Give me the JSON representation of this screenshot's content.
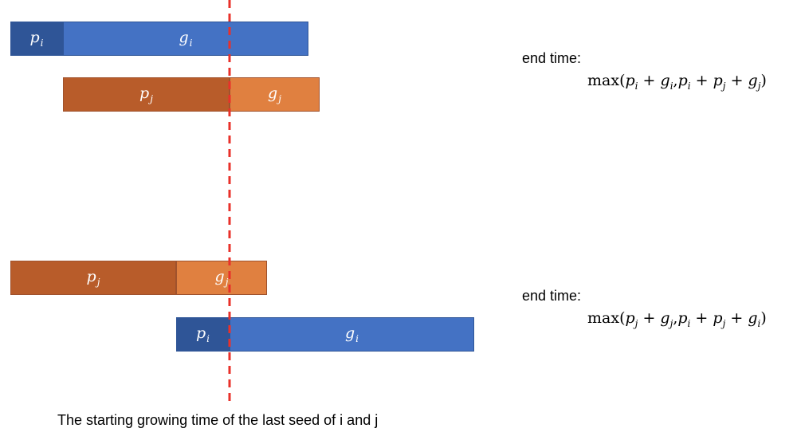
{
  "colors": {
    "p_i": "#2f5597",
    "g_i": "#4472c4",
    "p_j": "#b85c2a",
    "g_j": "#e08040",
    "divider": "#e8312a"
  },
  "scenario1": {
    "bar_i": {
      "p_label": "p",
      "p_sub": "i",
      "g_label": "g",
      "g_sub": "i"
    },
    "bar_j": {
      "p_label": "p",
      "p_sub": "j",
      "g_label": "g",
      "g_sub": "j"
    },
    "end_time_label": "end time:",
    "formula": {
      "fn": "max",
      "t1a": "p",
      "s1a": "i",
      "op1": "+",
      "t1b": "g",
      "s1b": "i",
      "comma": ",",
      "t2a": "p",
      "s2a": "i",
      "op2": "+",
      "t2b": "p",
      "s2b": "j",
      "op3": "+",
      "t2c": "g",
      "s2c": "j"
    }
  },
  "scenario2": {
    "bar_j": {
      "p_label": "p",
      "p_sub": "j",
      "g_label": "g",
      "g_sub": "j"
    },
    "bar_i": {
      "p_label": "p",
      "p_sub": "i",
      "g_label": "g",
      "g_sub": "i"
    },
    "end_time_label": "end time:",
    "formula": {
      "fn": "max",
      "t1a": "p",
      "s1a": "j",
      "op1": "+",
      "t1b": "g",
      "s1b": "j",
      "comma": ",",
      "t2a": "p",
      "s2a": "i",
      "op2": "+",
      "t2b": "p",
      "s2b": "j",
      "op3": "+",
      "t2c": "g",
      "s2c": "i"
    }
  },
  "caption": "The starting growing time of the last seed of i and j"
}
